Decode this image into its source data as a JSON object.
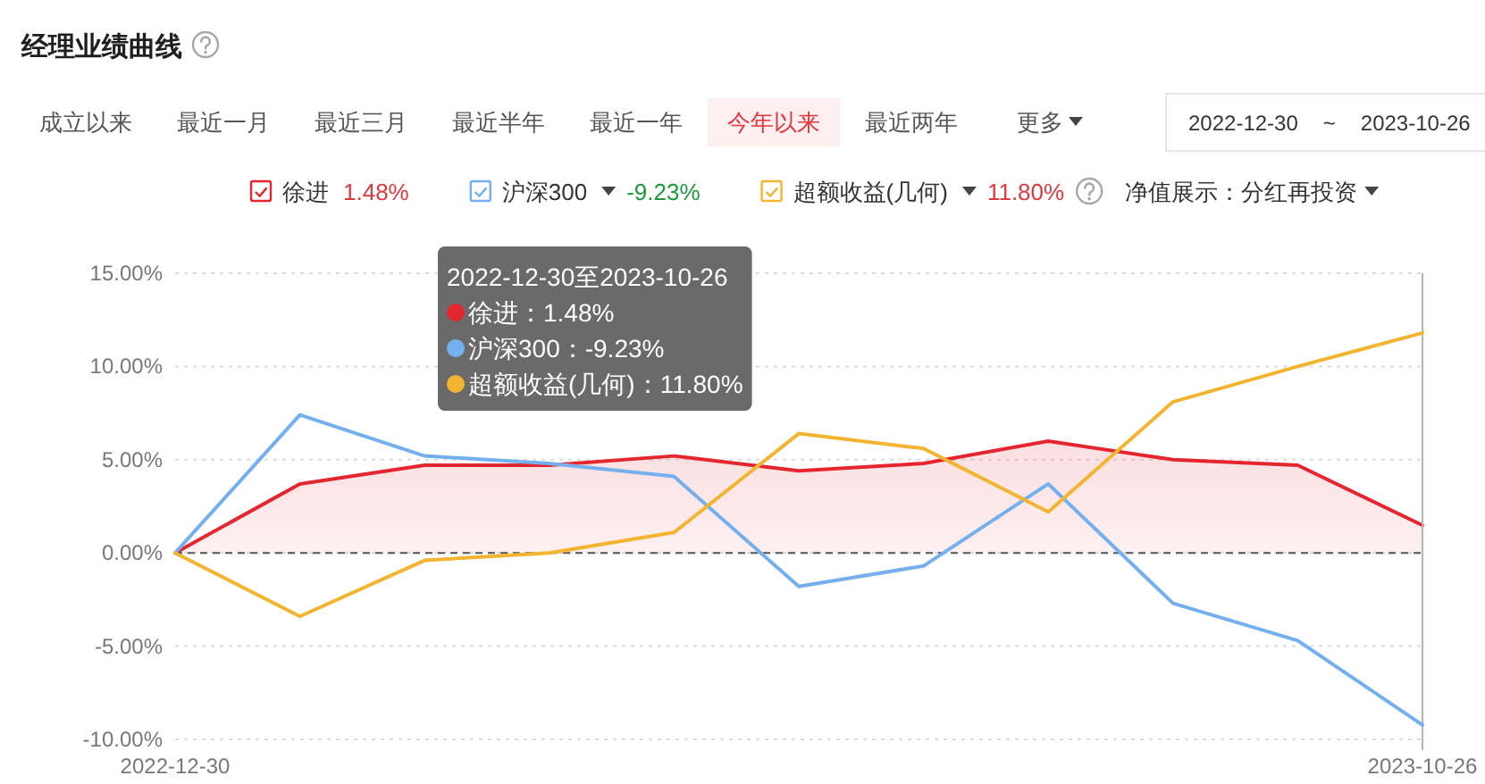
{
  "chart_data": {
    "type": "line",
    "title": "经理业绩曲线",
    "categories": [
      "2022-12-30",
      null,
      null,
      null,
      null,
      null,
      null,
      null,
      null,
      null,
      "2023-10-26"
    ],
    "series": [
      {
        "name": "徐进",
        "type": "area",
        "color": "#e3262f",
        "values": [
          0,
          3.7,
          4.7,
          4.7,
          5.2,
          4.4,
          4.8,
          6.0,
          5.0,
          4.7,
          1.48
        ]
      },
      {
        "name": "沪深300",
        "color": "#74b0ee",
        "values": [
          0,
          7.4,
          5.2,
          4.8,
          4.1,
          -1.8,
          -0.7,
          3.7,
          -2.7,
          -4.7,
          -9.23
        ]
      },
      {
        "name": "超额收益(几何)",
        "color": "#f2b431",
        "values": [
          0,
          -3.4,
          -0.4,
          0,
          1.1,
          6.4,
          5.6,
          2.2,
          8.1,
          10.0,
          11.8
        ]
      }
    ],
    "ylim": [
      -10,
      15
    ],
    "yticks": [
      {
        "value": -10,
        "label": "-10.00%"
      },
      {
        "value": -5,
        "label": "-5.00%"
      },
      {
        "value": 0,
        "label": "0.00%"
      },
      {
        "value": 5,
        "label": "5.00%"
      },
      {
        "value": 10,
        "label": "10.00%"
      },
      {
        "value": 15,
        "label": "15.00%"
      }
    ],
    "grid": "y",
    "legend": "top",
    "ref_lines": [
      {
        "axis": "y",
        "value": 0,
        "color": "#555555",
        "line_style": "dashed"
      },
      {
        "axis": "x",
        "value": "2023-10-26",
        "color": "#b4b4b4"
      }
    ],
    "annotations": [
      "成立以来",
      "最近一月",
      "最近三月",
      "最近半年",
      "最近一年",
      "今年以来",
      "最近两年",
      "更多",
      "2022-12-30",
      "~",
      "2023-10-26",
      "1.48%",
      "-9.23%",
      "11.80%",
      "净值展示：分红再投资",
      "2022-12-30至2023-10-26",
      "徐进：1.48%",
      "沪深300：-9.23%",
      "超额收益(几何)：11.80%"
    ]
  }
}
